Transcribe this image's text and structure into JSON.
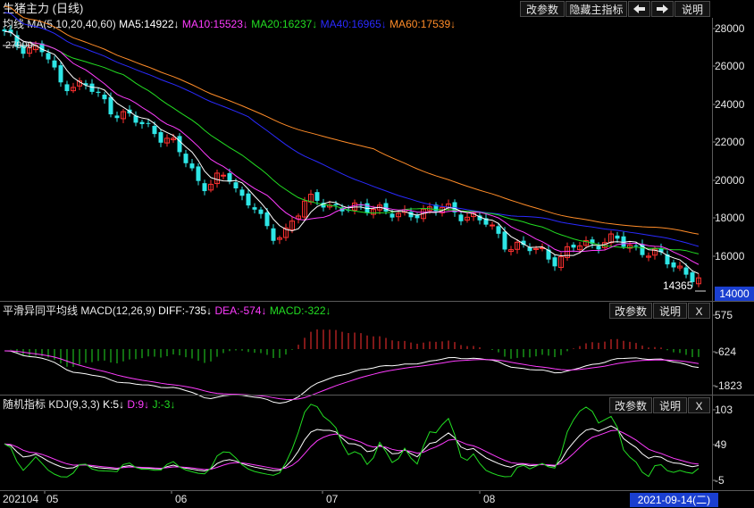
{
  "window": {
    "title": "生猪主力 (日线)"
  },
  "toolbar": {
    "params_label": "改参数",
    "hide_indicator_label": "隐藏主指标",
    "left_icon": "arrow-left-icon",
    "right_icon": "arrow-right-icon",
    "help_label": "说明"
  },
  "main_panel": {
    "indicator": "均线",
    "params": "MA(5,10,20,40,60)",
    "ma5": "MA5:14922↓",
    "ma10": "MA10:15523↓",
    "ma20": "MA20:16237↓",
    "ma40": "MA40:16965↓",
    "ma60": "MA60:17539↓",
    "top_price_label": "27900",
    "last_price_label": "14365",
    "current_price_box": "14000",
    "y_ticks": [
      "28000",
      "26000",
      "24000",
      "22000",
      "20000",
      "18000",
      "16000"
    ],
    "colors": {
      "ma5": "#ffffff",
      "ma10": "#ff3cff",
      "ma20": "#22dd22",
      "ma40": "#2a2aff",
      "ma60": "#ff8c28",
      "up": "#ff3030",
      "down": "#2ee6e6"
    }
  },
  "macd_panel": {
    "title": "平滑异同平均线",
    "params": "MACD(12,26,9)",
    "diff": "DIFF:-735↓",
    "dea": "DEA:-574↓",
    "macd": "MACD:-322↓",
    "params_label": "改参数",
    "help_label": "说明",
    "close_label": "X",
    "y_ticks": [
      "575",
      "-624",
      "-1823"
    ]
  },
  "kdj_panel": {
    "title": "随机指标",
    "params": "KDJ(9,3,3)",
    "k": "K:5↓",
    "d": "D:9↓",
    "j": "J:-3↓",
    "params_label": "改参数",
    "help_label": "说明",
    "close_label": "X",
    "y_ticks": [
      "103",
      "49",
      "-5"
    ]
  },
  "time_axis": {
    "labels": [
      "202104",
      "05",
      "06",
      "07",
      "08"
    ],
    "cursor_date": "2021-09-14(二)"
  }
}
